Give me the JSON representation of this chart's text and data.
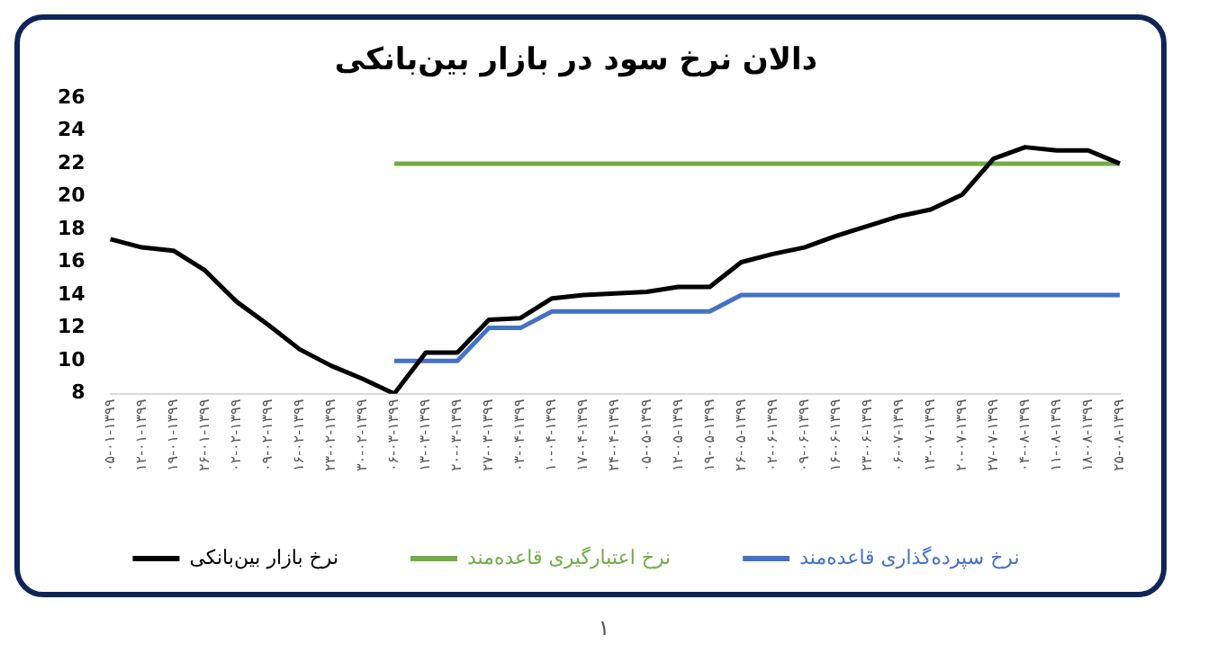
{
  "chart_data": {
    "type": "line",
    "title": "دالان نرخ سود در بازار بین‌بانکی",
    "categories": [
      "۰۵-۰۱-۱۳۹۹",
      "۱۲-۰۱-۱۳۹۹",
      "۱۹-۰۱-۱۳۹۹",
      "۲۶-۰۱-۱۳۹۹",
      "۰۲-۰۲-۱۳۹۹",
      "۰۹-۰۲-۱۳۹۹",
      "۱۶-۰۲-۱۳۹۹",
      "۲۳-۰۲-۱۳۹۹",
      "۳۰-۰۲-۱۳۹۹",
      "۰۶-۰۳-۱۳۹۹",
      "۱۳-۰۳-۱۳۹۹",
      "۲۰-۰۳-۱۳۹۹",
      "۲۷-۰۳-۱۳۹۹",
      "۰۳-۰۴-۱۳۹۹",
      "۱۰-۰۴-۱۳۹۹",
      "۱۷-۰۴-۱۳۹۹",
      "۲۴-۰۴-۱۳۹۹",
      "۰۵-۰۵-۱۳۹۹",
      "۱۲-۰۵-۱۳۹۹",
      "۱۹-۰۵-۱۳۹۹",
      "۲۶-۰۵-۱۳۹۹",
      "۰۲-۰۶-۱۳۹۹",
      "۰۹-۰۶-۱۳۹۹",
      "۱۶-۰۶-۱۳۹۹",
      "۲۳-۰۶-۱۳۹۹",
      "۰۶-۰۷-۱۳۹۹",
      "۱۳-۰۷-۱۳۹۹",
      "۲۰-۰۷-۱۳۹۹",
      "۲۷-۰۷-۱۳۹۹",
      "۰۴-۰۸-۱۳۹۹",
      "۱۱-۰۸-۱۳۹۹",
      "۱۸-۰۸-۱۳۹۹",
      "۲۵-۰۸-۱۳۹۹"
    ],
    "series": [
      {
        "name": "نرخ بازار بین‌بانکی",
        "color": "#000000",
        "values": [
          17.4,
          16.9,
          16.7,
          15.5,
          13.6,
          12.2,
          10.7,
          9.7,
          8.9,
          8.0,
          10.5,
          10.5,
          12.5,
          12.6,
          13.8,
          14.0,
          14.1,
          14.2,
          14.5,
          14.5,
          16.0,
          16.5,
          16.9,
          17.6,
          18.2,
          18.8,
          19.2,
          20.1,
          22.3,
          23.0,
          22.8,
          22.8,
          22.0
        ]
      },
      {
        "name": "نرخ اعتبارگیری قاعده‌مند",
        "color": "#70ad47",
        "values": [
          null,
          null,
          null,
          null,
          null,
          null,
          null,
          null,
          null,
          22,
          22,
          22,
          22,
          22,
          22,
          22,
          22,
          22,
          22,
          22,
          22,
          22,
          22,
          22,
          22,
          22,
          22,
          22,
          22,
          22,
          22,
          22,
          22
        ]
      },
      {
        "name": "نرخ سپرده‌گذاری قاعده‌مند",
        "color": "#4472c4",
        "values": [
          null,
          null,
          null,
          null,
          null,
          null,
          null,
          null,
          null,
          10,
          10,
          10,
          12,
          12,
          13,
          13,
          13,
          13,
          13,
          13,
          14,
          14,
          14,
          14,
          14,
          14,
          14,
          14,
          14,
          14,
          14,
          14,
          14
        ]
      }
    ],
    "ylim": [
      8,
      26
    ],
    "yticks": [
      8,
      10,
      12,
      14,
      16,
      18,
      20,
      22,
      24,
      26
    ],
    "grid": false,
    "legend": "bottom",
    "marker": "none",
    "line_style": "solid",
    "annotations": [
      "۱"
    ]
  }
}
